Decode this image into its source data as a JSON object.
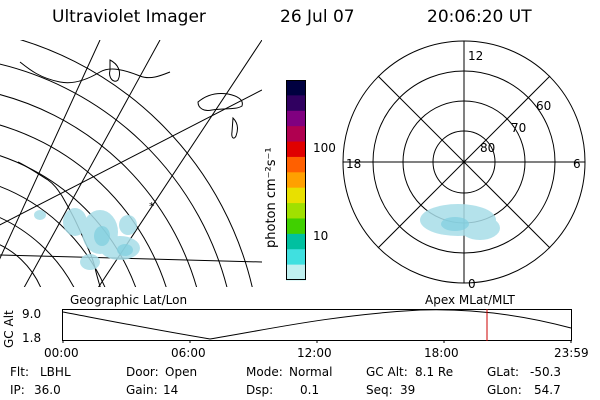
{
  "header": {
    "instrument": "Ultraviolet Imager",
    "date": "26 Jul 07",
    "time": "20:06:20 UT"
  },
  "map_panel": {
    "label": "Geographic Lat/Lon"
  },
  "colorbar": {
    "unit_label": "photon cm⁻²s⁻¹",
    "ticks": [
      "100",
      "10"
    ],
    "colors": [
      "#000040",
      "#300060",
      "#800080",
      "#b00050",
      "#e00000",
      "#ff6000",
      "#ffa000",
      "#e8e000",
      "#a0e000",
      "#40d000",
      "#00c0a0",
      "#40e0e0",
      "#c0f0f0"
    ]
  },
  "polar_panel": {
    "label": "Apex MLat/MLT",
    "mlt_labels": {
      "top": "12",
      "left": "18",
      "right": "6",
      "bottom": "0"
    },
    "lat_labels": [
      "60",
      "70",
      "80"
    ]
  },
  "altitude_plot": {
    "ylabel": "GC Alt",
    "ytick_top": "9.0",
    "ytick_bottom": "1.8",
    "xticks": [
      "00:00",
      "06:00",
      "12:00",
      "18:00",
      "23:59"
    ],
    "marker_color": "#cc0000"
  },
  "info": {
    "row1": [
      {
        "key": "Flt:",
        "value": "LBHL"
      },
      {
        "key": "Door:",
        "value": "Open"
      },
      {
        "key": "Mode:",
        "value": "Normal"
      },
      {
        "key": "GC Alt:",
        "value": "8.1 Re"
      },
      {
        "key": "GLat:",
        "value": "-50.3"
      }
    ],
    "row2": [
      {
        "key": "IP:",
        "value": "36.0"
      },
      {
        "key": "Gain:",
        "value": "14"
      },
      {
        "key": "Dsp:",
        "value": "0.1"
      },
      {
        "key": "Seq:",
        "value": "39"
      },
      {
        "key": "GLon:",
        "value": "54.7"
      }
    ]
  }
}
